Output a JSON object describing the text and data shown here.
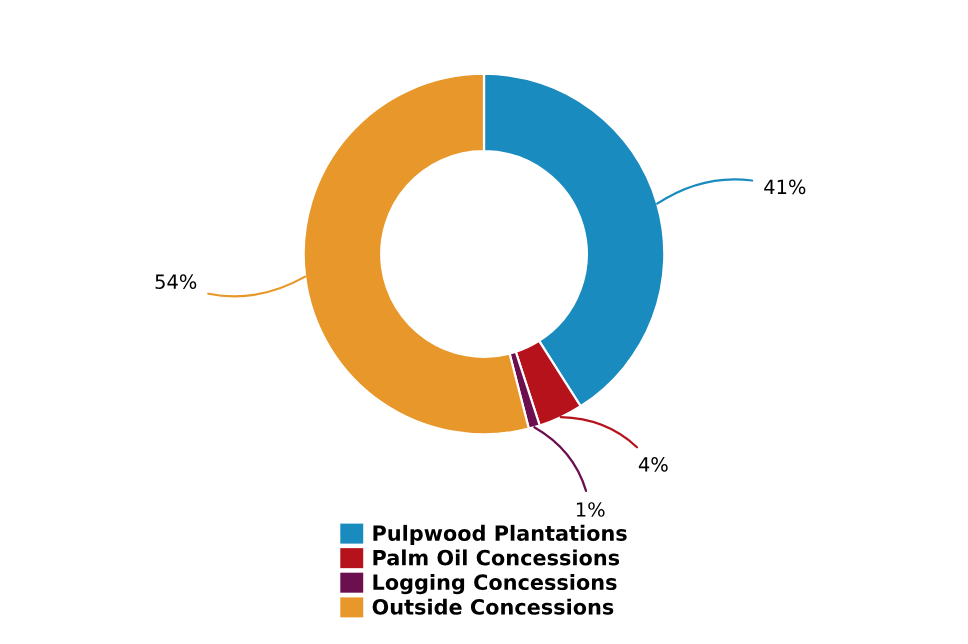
{
  "chart_data": {
    "type": "donut",
    "categories": [
      "Pulpwood Plantations",
      "Palm Oil Concessions",
      "Logging Concessions",
      "Outside Concessions"
    ],
    "values": [
      41,
      4,
      1,
      54
    ],
    "colors": [
      "#1a8bbf",
      "#b5121b",
      "#6b0f4f",
      "#e8982a"
    ],
    "value_labels": [
      "41%",
      "4%",
      "1%",
      "54%"
    ],
    "legend": "bottom"
  }
}
